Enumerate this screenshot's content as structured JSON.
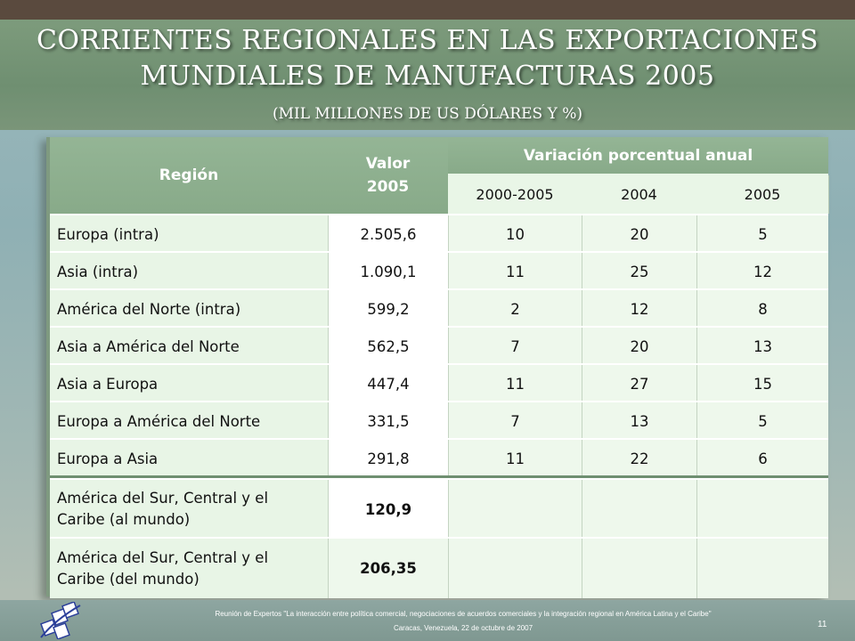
{
  "slide": {
    "title_line1": "CORRIENTES REGIONALES EN LAS EXPORTACIONES",
    "title_line2": "MUNDIALES DE MANUFACTURAS  2005",
    "subtitle": "(MIL MILLONES DE US DÓLARES Y %)",
    "page_number": "11"
  },
  "table": {
    "headers": {
      "region": "Región",
      "valor_line1": "Valor",
      "valor_line2": "2005",
      "variacion": "Variación porcentual anual",
      "sub": [
        "2000-2005",
        "2004",
        "2005"
      ]
    },
    "rows": [
      {
        "region": "Europa (intra)",
        "valor": "2.505,6",
        "v1": "10",
        "v2": "20",
        "v3": "5"
      },
      {
        "region": "Asia (intra)",
        "valor": "1.090,1",
        "v1": "11",
        "v2": "25",
        "v3": "12"
      },
      {
        "region": "América del Norte (intra)",
        "valor": "599,2",
        "v1": "2",
        "v2": "12",
        "v3": "8"
      },
      {
        "region": "Asia a América del Norte",
        "valor": "562,5",
        "v1": "7",
        "v2": "20",
        "v3": "13"
      },
      {
        "region": "Asia a Europa",
        "valor": "447,4",
        "v1": "11",
        "v2": "27",
        "v3": "15"
      },
      {
        "region": "Europa a América del Norte",
        "valor": "331,5",
        "v1": "7",
        "v2": "13",
        "v3": "5"
      },
      {
        "region": "Europa a Asia",
        "valor": "291,8",
        "v1": "11",
        "v2": "22",
        "v3": "6"
      }
    ],
    "extra_rows": [
      {
        "region_line1": "América del Sur, Central y el",
        "region_line2": "Caribe (al mundo)",
        "valor": "120,9"
      },
      {
        "region_line1": "América del Sur, Central  y el",
        "region_line2": "Caribe (del mundo)",
        "valor": "206,35"
      }
    ]
  },
  "footer": {
    "line1": "Reunión de Expertos \"La interacción entre política comercial, negociaciones de acuerdos comerciales y la integración regional en América Latina y el Caribe\"",
    "line2": "Caracas, Venezuela, 22 de octubre de 2007"
  },
  "colors": {
    "header_green": "#88aa89",
    "title_band": "#6f8f71",
    "cell_bg": "#e8f5e6"
  }
}
